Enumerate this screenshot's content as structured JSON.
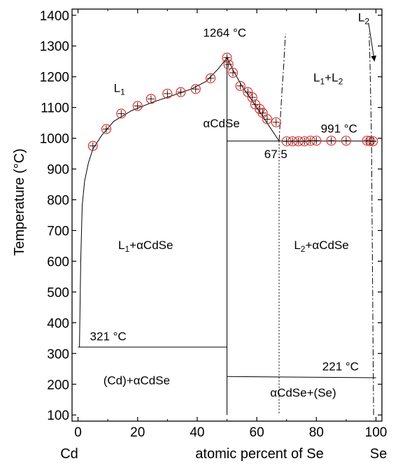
{
  "chart_data": {
    "type": "scatter",
    "title": "",
    "xlabel": "atomic percent of Se",
    "ylabel": "Temperature (°C)",
    "xlim": [
      -2,
      102
    ],
    "ylim": [
      80,
      1420
    ],
    "x_ticks": [
      0,
      20,
      40,
      60,
      80,
      100
    ],
    "y_ticks": [
      100,
      200,
      300,
      400,
      500,
      600,
      700,
      800,
      900,
      1000,
      1100,
      1200,
      1300,
      1400
    ],
    "x_end_labels": {
      "left": "Cd",
      "right": "Se"
    },
    "grid": false,
    "legend": "none",
    "series": [
      {
        "kind": "markers",
        "marker": "circle-plus",
        "color": "#e0201b",
        "points": [
          [
            5,
            975
          ],
          [
            9.5,
            1030
          ],
          [
            14.5,
            1080
          ],
          [
            20,
            1105
          ],
          [
            24.5,
            1128
          ],
          [
            30,
            1145
          ],
          [
            34.5,
            1150
          ],
          [
            39.5,
            1160
          ],
          [
            44.5,
            1195
          ],
          [
            50,
            1262
          ],
          [
            50.5,
            1240
          ],
          [
            52,
            1213
          ],
          [
            54.5,
            1170
          ],
          [
            57,
            1150
          ],
          [
            58.5,
            1133
          ],
          [
            59.5,
            1110
          ],
          [
            61,
            1095
          ],
          [
            62,
            1082
          ],
          [
            63.5,
            1062
          ],
          [
            66.5,
            1052
          ],
          [
            70,
            990
          ],
          [
            72,
            990
          ],
          [
            74,
            990
          ],
          [
            76,
            990
          ],
          [
            78,
            992
          ],
          [
            80,
            992
          ],
          [
            85,
            992
          ],
          [
            90,
            992
          ],
          [
            97,
            992
          ],
          [
            98,
            991
          ],
          [
            99,
            990
          ]
        ]
      },
      {
        "kind": "solid-line",
        "name": "liquidus",
        "points": [
          [
            0.5,
            321
          ],
          [
            0.9,
            600
          ],
          [
            1.4,
            780
          ],
          [
            2.2,
            860
          ],
          [
            3.5,
            920
          ],
          [
            5,
            965
          ],
          [
            8,
            1010
          ],
          [
            12,
            1055
          ],
          [
            18,
            1090
          ],
          [
            25,
            1117
          ],
          [
            32,
            1140
          ],
          [
            38,
            1160
          ],
          [
            43,
            1185
          ],
          [
            47,
            1225
          ],
          [
            49.5,
            1255
          ],
          [
            50,
            1264
          ],
          [
            52,
            1222
          ],
          [
            55,
            1170
          ],
          [
            58,
            1128
          ],
          [
            61,
            1085
          ],
          [
            64,
            1042
          ],
          [
            67.5,
            991
          ]
        ]
      },
      {
        "kind": "solid-line",
        "points": [
          [
            50,
            1264
          ],
          [
            50,
            100
          ]
        ]
      },
      {
        "kind": "solid-line",
        "points": [
          [
            50,
            991
          ],
          [
            100,
            991
          ]
        ]
      },
      {
        "kind": "solid-line",
        "points": [
          [
            0,
            321
          ],
          [
            50,
            321
          ]
        ]
      },
      {
        "kind": "solid-line",
        "points": [
          [
            50,
            225
          ],
          [
            100,
            221
          ]
        ]
      },
      {
        "kind": "dash-dot-line",
        "name": "L1+L2 boundary",
        "points": [
          [
            67.5,
            991
          ],
          [
            68,
            1080
          ],
          [
            68.5,
            1160
          ],
          [
            69,
            1230
          ],
          [
            69.4,
            1300
          ],
          [
            69.6,
            1340
          ]
        ]
      },
      {
        "kind": "dash-dot-line",
        "name": "L2 boundary",
        "points": [
          [
            99.2,
            100
          ],
          [
            98.5,
            991
          ],
          [
            98,
            1240
          ],
          [
            97.7,
            1340
          ]
        ]
      },
      {
        "kind": "dotted-line",
        "points": [
          [
            67.5,
            991
          ],
          [
            67.5,
            100
          ]
        ]
      }
    ],
    "annotations": [
      {
        "parts": [
          "L",
          "1"
        ],
        "x": 12,
        "y": 1150
      },
      {
        "parts": [
          "L",
          "1",
          "+L",
          "2"
        ],
        "x": 79,
        "y": 1185
      },
      {
        "parts": [
          "L",
          "2"
        ],
        "x": 94,
        "y": 1380
      },
      {
        "parts": [
          "L",
          "1",
          "+αCdSe"
        ],
        "x": 13.5,
        "y": 640
      },
      {
        "parts": [
          "L",
          "2",
          "+αCdSe"
        ],
        "x": 72.5,
        "y": 640
      },
      {
        "parts": [
          "αCdSe"
        ],
        "x": 42,
        "y": 1035
      },
      {
        "parts": [
          "(Cd)+αCdSe"
        ],
        "x": 8.5,
        "y": 200
      },
      {
        "parts": [
          "αCdSe+(Se)"
        ],
        "x": 64.5,
        "y": 160
      },
      {
        "parts": [
          "1264 °C"
        ],
        "x": 42,
        "y": 1330
      },
      {
        "parts": [
          "991 °C"
        ],
        "x": 81.5,
        "y": 1018
      },
      {
        "parts": [
          "67.5"
        ],
        "x": 62.5,
        "y": 935
      },
      {
        "parts": [
          "321 °C"
        ],
        "x": 4,
        "y": 343
      },
      {
        "parts": [
          "221 °C"
        ],
        "x": 82,
        "y": 245
      }
    ],
    "arrow": {
      "from": [
        97.5,
        1375
      ],
      "to": [
        99.5,
        1250
      ]
    }
  }
}
